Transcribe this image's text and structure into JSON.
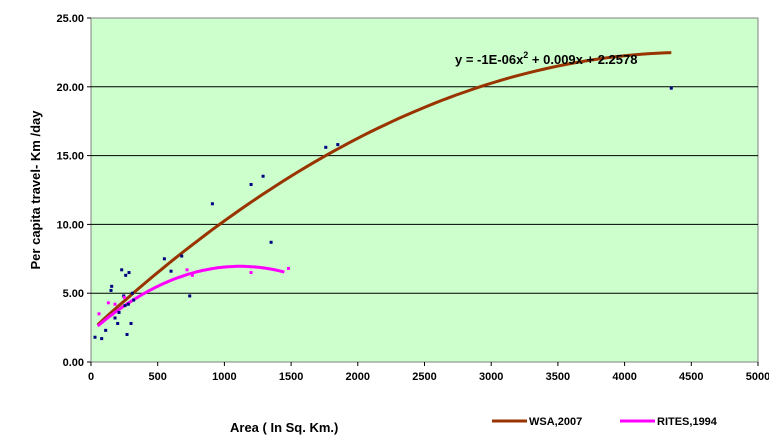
{
  "chart_data": {
    "type": "scatter",
    "ylabel": "Per capita travel- Km /day",
    "xlabel": "Area ( In Sq. Km.)",
    "xlim": [
      0,
      5000
    ],
    "ylim": [
      0,
      25
    ],
    "x_ticks": [
      "0",
      "500",
      "1000",
      "1500",
      "2000",
      "2500",
      "3000",
      "3500",
      "4000",
      "4500",
      "5000"
    ],
    "y_ticks": [
      "0.00",
      "5.00",
      "10.00",
      "15.00",
      "20.00",
      "25.00"
    ],
    "grid": "horizontal",
    "plot_background": "#ccffcc",
    "annotation": "y = -1E-06x",
    "annotation_sup": "2",
    "annotation_rest": " + 0.009x + 2.2578",
    "series": [
      {
        "name": "WSA,2007",
        "kind": "trendline",
        "color": "#993300",
        "x_range": [
          50,
          4350
        ],
        "coeffs": {
          "a": -1e-06,
          "b": 0.009,
          "c": 2.2578
        },
        "legend_label": "WSA,2007"
      },
      {
        "name": "RITES,1994",
        "kind": "trendline",
        "color": "#ff00ff",
        "x_range": [
          50,
          1450
        ],
        "coeffs": {
          "a": -3.8e-06,
          "b": 0.0085,
          "c": 2.2
        },
        "legend_label": "RITES,1994"
      }
    ],
    "points_wsa": [
      {
        "x": 30,
        "y": 1.8
      },
      {
        "x": 80,
        "y": 1.7
      },
      {
        "x": 110,
        "y": 2.3
      },
      {
        "x": 150,
        "y": 5.2
      },
      {
        "x": 155,
        "y": 5.5
      },
      {
        "x": 180,
        "y": 3.2
      },
      {
        "x": 200,
        "y": 2.8
      },
      {
        "x": 210,
        "y": 3.6
      },
      {
        "x": 230,
        "y": 6.7
      },
      {
        "x": 245,
        "y": 4.8
      },
      {
        "x": 255,
        "y": 4.1
      },
      {
        "x": 260,
        "y": 6.3
      },
      {
        "x": 270,
        "y": 2.0
      },
      {
        "x": 280,
        "y": 4.2
      },
      {
        "x": 285,
        "y": 6.5
      },
      {
        "x": 300,
        "y": 2.8
      },
      {
        "x": 310,
        "y": 5.0
      },
      {
        "x": 320,
        "y": 4.5
      },
      {
        "x": 550,
        "y": 7.5
      },
      {
        "x": 600,
        "y": 6.6
      },
      {
        "x": 680,
        "y": 7.7
      },
      {
        "x": 740,
        "y": 4.8
      },
      {
        "x": 910,
        "y": 11.5
      },
      {
        "x": 1200,
        "y": 12.9
      },
      {
        "x": 1290,
        "y": 13.5
      },
      {
        "x": 1350,
        "y": 8.7
      },
      {
        "x": 1760,
        "y": 15.6
      },
      {
        "x": 1850,
        "y": 15.8
      },
      {
        "x": 4350,
        "y": 19.9
      }
    ],
    "points_rites": [
      {
        "x": 60,
        "y": 3.5
      },
      {
        "x": 130,
        "y": 4.3
      },
      {
        "x": 180,
        "y": 4.2
      },
      {
        "x": 250,
        "y": 4.7
      },
      {
        "x": 720,
        "y": 6.7
      },
      {
        "x": 760,
        "y": 6.3
      },
      {
        "x": 1200,
        "y": 6.5
      },
      {
        "x": 1480,
        "y": 6.8
      }
    ]
  }
}
